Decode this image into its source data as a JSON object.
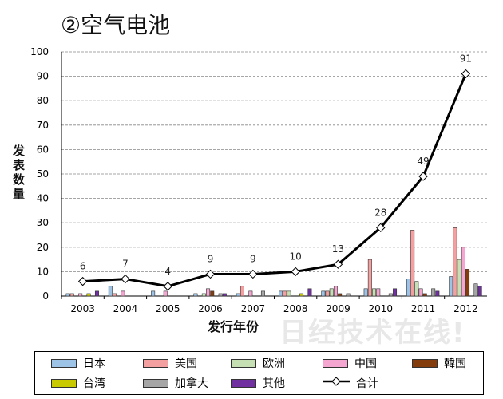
{
  "title": "②空气电池",
  "watermark": "日经技术在线!",
  "chart_data": {
    "type": "bar+line",
    "xlabel": "发行年份",
    "ylabel": "发表数量",
    "ylim": [
      0,
      100
    ],
    "yticks": [
      0,
      10,
      20,
      30,
      40,
      50,
      60,
      70,
      80,
      90,
      100
    ],
    "grid": "horizontal dashed",
    "legend": "bottom",
    "categories": [
      "2003",
      "2004",
      "2005",
      "2006",
      "2007",
      "2008",
      "2009",
      "2010",
      "2011",
      "2012"
    ],
    "series": [
      {
        "name": "日本",
        "color": "#9dc3e6",
        "values": [
          1,
          4,
          2,
          1,
          1,
          2,
          2,
          3,
          7,
          8
        ]
      },
      {
        "name": "美国",
        "color": "#f4a0a0",
        "values": [
          1,
          1,
          0,
          0,
          4,
          2,
          2,
          15,
          27,
          28
        ]
      },
      {
        "name": "欧洲",
        "color": "#c6e0b4",
        "values": [
          0,
          0,
          0,
          1,
          0,
          2,
          3,
          3,
          6,
          15
        ]
      },
      {
        "name": "中国",
        "color": "#f4a6d0",
        "values": [
          1,
          2,
          2,
          3,
          2,
          0,
          4,
          3,
          3,
          20
        ]
      },
      {
        "name": "韓国",
        "color": "#843c0c",
        "values": [
          0,
          0,
          0,
          2,
          0,
          0,
          1,
          0,
          1,
          11
        ]
      },
      {
        "name": "台湾",
        "color": "#c9c900",
        "values": [
          1,
          0,
          0,
          0,
          0,
          1,
          0,
          0,
          0,
          0
        ]
      },
      {
        "name": "加拿大",
        "color": "#a6a6a6",
        "values": [
          0,
          0,
          0,
          1,
          2,
          0,
          1,
          1,
          3,
          5
        ]
      },
      {
        "name": "其他",
        "color": "#7030a0",
        "values": [
          2,
          0,
          0,
          1,
          0,
          3,
          0,
          3,
          2,
          4
        ]
      }
    ],
    "line": {
      "name": "合计",
      "color": "#000000",
      "values": [
        6,
        7,
        4,
        9,
        9,
        10,
        13,
        28,
        49,
        91
      ],
      "labels": [
        "6",
        "7",
        "4",
        "9",
        "9",
        "10",
        "13",
        "28",
        "49",
        "91"
      ]
    }
  }
}
